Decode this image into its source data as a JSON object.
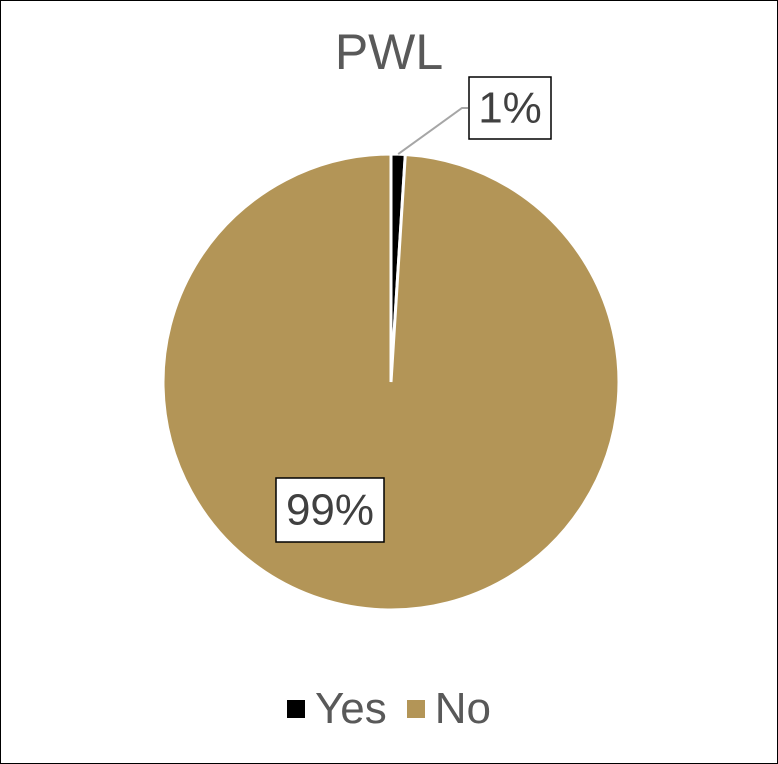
{
  "chart_data": {
    "type": "pie",
    "title": "PWL",
    "labels": [
      "Yes",
      "No"
    ],
    "values": [
      1,
      99
    ],
    "data_labels": [
      "1%",
      "99%"
    ],
    "colors": [
      "#000000",
      "#B39557"
    ],
    "legend_position": "bottom"
  }
}
